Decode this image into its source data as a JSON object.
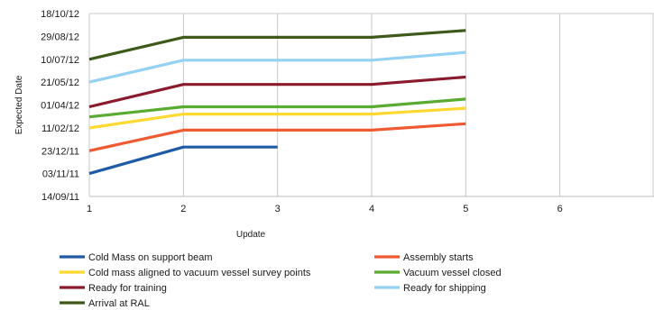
{
  "chart_data": {
    "type": "line",
    "title": "",
    "xlabel": "Update",
    "ylabel": "Expected Date",
    "x_ticks": [
      "1",
      "2",
      "3",
      "4",
      "5",
      "6"
    ],
    "xlim": [
      1,
      7
    ],
    "y_ticks": [
      "14/09/11",
      "03/11/11",
      "23/12/11",
      "11/02/12",
      "01/04/12",
      "21/05/12",
      "10/07/12",
      "29/08/12",
      "18/10/12"
    ],
    "ylim": [
      "2011-09-14",
      "2012-10-18"
    ],
    "grid": "vertical",
    "legend_position": "bottom",
    "series": [
      {
        "name": "Cold Mass on support beam",
        "color": "#1f5aa6",
        "points": [
          [
            1,
            "2011-11-03"
          ],
          [
            2,
            "2011-12-31"
          ],
          [
            3,
            "2011-12-31"
          ]
        ]
      },
      {
        "name": "Assembly starts",
        "color": "#f05a33",
        "points": [
          [
            1,
            "2011-12-23"
          ],
          [
            2,
            "2012-02-06"
          ],
          [
            4,
            "2012-02-06"
          ],
          [
            5,
            "2012-02-20"
          ]
        ]
      },
      {
        "name": "Cold mass aligned to vacuum vessel survey points",
        "color": "#ffd830",
        "points": [
          [
            1,
            "2012-02-11"
          ],
          [
            2,
            "2012-03-12"
          ],
          [
            4,
            "2012-03-12"
          ],
          [
            5,
            "2012-03-25"
          ]
        ]
      },
      {
        "name": "Vacuum vessel closed",
        "color": "#5aab32",
        "points": [
          [
            1,
            "2012-03-06"
          ],
          [
            2,
            "2012-03-28"
          ],
          [
            4,
            "2012-03-28"
          ],
          [
            5,
            "2012-04-14"
          ]
        ]
      },
      {
        "name": "Ready for training",
        "color": "#8b1a2c",
        "points": [
          [
            1,
            "2012-03-28"
          ],
          [
            2,
            "2012-05-16"
          ],
          [
            4,
            "2012-05-16"
          ],
          [
            5,
            "2012-06-01"
          ]
        ]
      },
      {
        "name": "Ready for shipping",
        "color": "#94d1f2",
        "points": [
          [
            1,
            "2012-05-21"
          ],
          [
            2,
            "2012-07-08"
          ],
          [
            4,
            "2012-07-08"
          ],
          [
            5,
            "2012-07-25"
          ]
        ]
      },
      {
        "name": "Arrival at RAL",
        "color": "#3d5a1a",
        "points": [
          [
            1,
            "2012-07-10"
          ],
          [
            2,
            "2012-08-27"
          ],
          [
            4,
            "2012-08-27"
          ],
          [
            5,
            "2012-09-11"
          ]
        ]
      }
    ]
  }
}
